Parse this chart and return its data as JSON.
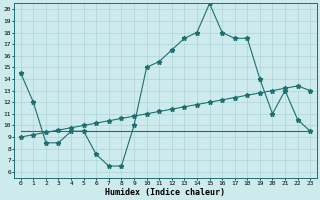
{
  "xlabel": "Humidex (Indice chaleur)",
  "bg_color": "#cdeaec",
  "line_color": "#1e7070",
  "grid_color": "#aed4d6",
  "xlim": [
    -0.5,
    23.5
  ],
  "ylim": [
    5.5,
    20.5
  ],
  "xticks": [
    0,
    1,
    2,
    3,
    4,
    5,
    6,
    7,
    8,
    9,
    10,
    11,
    12,
    13,
    14,
    15,
    16,
    17,
    18,
    19,
    20,
    21,
    22,
    23
  ],
  "yticks": [
    6,
    7,
    8,
    9,
    10,
    11,
    12,
    13,
    14,
    15,
    16,
    17,
    18,
    19,
    20
  ],
  "line1_x": [
    0,
    1,
    2,
    3,
    4,
    5,
    6,
    7,
    8,
    9,
    10,
    11,
    12,
    13,
    14,
    15,
    16,
    17,
    18,
    19,
    20,
    21,
    22,
    23
  ],
  "line1_y": [
    14.5,
    12.0,
    8.5,
    8.5,
    9.5,
    9.5,
    7.5,
    6.5,
    6.5,
    10.0,
    15.0,
    15.5,
    16.5,
    17.5,
    18.0,
    20.5,
    18.0,
    17.5,
    17.5,
    14.0,
    11.0,
    13.0,
    10.5,
    9.5
  ],
  "line2_x": [
    0,
    1,
    2,
    3,
    4,
    5,
    6,
    7,
    8,
    9,
    10,
    11,
    12,
    13,
    14,
    15,
    16,
    17,
    18,
    19,
    20,
    21,
    22,
    23
  ],
  "line2_y": [
    9.0,
    9.2,
    9.4,
    9.6,
    9.8,
    10.0,
    10.2,
    10.4,
    10.6,
    10.8,
    11.0,
    11.2,
    11.4,
    11.6,
    11.8,
    12.0,
    12.2,
    12.4,
    12.6,
    12.8,
    13.0,
    13.2,
    13.4,
    13.0
  ],
  "line3_x": [
    0,
    23
  ],
  "line3_y": [
    9.5,
    9.5
  ],
  "markersize": 3.5
}
